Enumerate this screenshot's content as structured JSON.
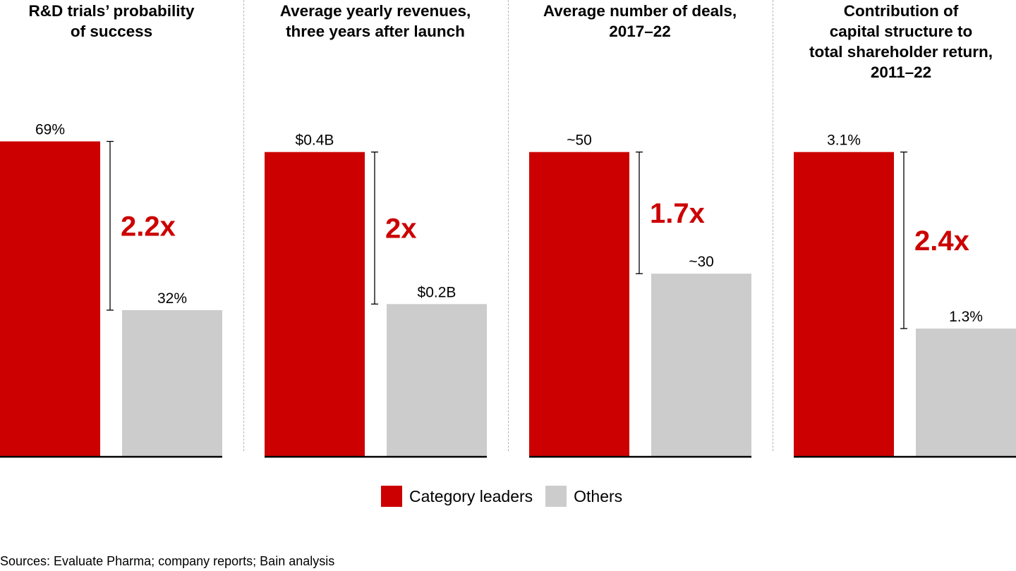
{
  "colors": {
    "leaders": "#cc0000",
    "others": "#cccccc",
    "multiplier": "#cc0000",
    "divider": "#b5b5b5"
  },
  "legend": {
    "leaders_label": "Category leaders",
    "others_label": "Others"
  },
  "source": "Sources: Evaluate Pharma; company reports; Bain analysis",
  "chart_data": [
    {
      "type": "bar",
      "title": "R&D trials’ probability\nof success",
      "categories": [
        "Category leaders",
        "Others"
      ],
      "values": [
        69,
        32
      ],
      "value_labels": [
        "69%",
        "32%"
      ],
      "multiplier": "2.2x",
      "ylim": [
        0,
        100
      ]
    },
    {
      "type": "bar",
      "title": "Average yearly revenues,\nthree years after launch",
      "categories": [
        "Category leaders",
        "Others"
      ],
      "values": [
        0.4,
        0.2
      ],
      "value_labels": [
        "$0.4B",
        "$0.2B"
      ],
      "multiplier": "2x",
      "ylim": [
        0,
        0.6
      ]
    },
    {
      "type": "bar",
      "title": "Average number of deals,\n2017–22",
      "categories": [
        "Category leaders",
        "Others"
      ],
      "values": [
        50,
        30
      ],
      "value_labels": [
        "~50",
        "~30"
      ],
      "multiplier": "1.7x",
      "ylim": [
        0,
        75
      ]
    },
    {
      "type": "bar",
      "title": "Contribution of\ncapital structure to\ntotal shareholder return,\n2011–22",
      "categories": [
        "Category leaders",
        "Others"
      ],
      "values": [
        3.1,
        1.3
      ],
      "value_labels": [
        "3.1%",
        "1.3%"
      ],
      "multiplier": "2.4x",
      "ylim": [
        0,
        4.65
      ]
    }
  ]
}
